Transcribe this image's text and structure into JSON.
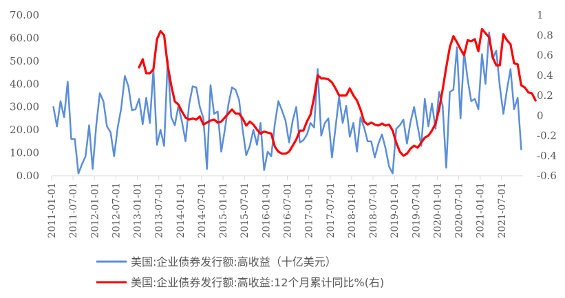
{
  "chart_data": {
    "type": "line",
    "colors": {
      "left_series": "#5B8ED8",
      "right_series": "#FF0000",
      "axis": "#D9D9D9",
      "text": "#595959"
    },
    "x_labels": [
      "2011-01-01",
      "2011-07-01",
      "2012-01-01",
      "2012-07-01",
      "2013-01-01",
      "2013-07-01",
      "2014-01-01",
      "2014-07-01",
      "2015-01-01",
      "2015-07-01",
      "2016-01-01",
      "2016-07-01",
      "2017-01-01",
      "2017-07-01",
      "2018-01-01",
      "2018-07-01",
      "2019-01-01",
      "2019-07-01",
      "2020-01-01",
      "2020-07-01",
      "2021-01-01",
      "2021-07-01"
    ],
    "start_month": "2011-01",
    "y_left": {
      "min": 0,
      "max": 70,
      "step": 10,
      "tick_labels": [
        "0.00",
        "10.00",
        "20.00",
        "30.00",
        "40.00",
        "50.00",
        "60.00",
        "70.00"
      ]
    },
    "y_right": {
      "min": -0.6,
      "max": 1.0,
      "step": 0.2,
      "tick_labels": [
        "-0.6",
        "-0.4",
        "-0.2",
        "0",
        "0.2",
        "0.4",
        "0.6",
        "0.8",
        "1"
      ]
    },
    "series": [
      {
        "name": "美国:企业债券发行额:高收益（十亿美元）",
        "axis": "left",
        "values": [
          30,
          21.5,
          32.5,
          25.5,
          41,
          16,
          16,
          1,
          5,
          8.5,
          22,
          3,
          22,
          36,
          32.5,
          21.5,
          19,
          8.5,
          21,
          29.5,
          43.5,
          39,
          28.5,
          29,
          33.5,
          22.5,
          34,
          23,
          46.5,
          13.5,
          20,
          13,
          50.5,
          25.5,
          22,
          30.5,
          23.5,
          15,
          31,
          39,
          38.5,
          30,
          25,
          3,
          39.5,
          27,
          28,
          10.5,
          20,
          31,
          38.5,
          37.5,
          33,
          20,
          9,
          13,
          20,
          13.5,
          23,
          2.5,
          10.5,
          8.5,
          22.5,
          32.5,
          28.5,
          24,
          14.5,
          24,
          30,
          14.5,
          15.5,
          18,
          23,
          21,
          46.5,
          17.5,
          23,
          25,
          8,
          21,
          34.5,
          23,
          30.5,
          17,
          23,
          10.5,
          25.5,
          21,
          15,
          15,
          8,
          14,
          18,
          12,
          4,
          1,
          20.5,
          22,
          24.5,
          14,
          23.5,
          30,
          21.5,
          13,
          33.5,
          21.5,
          31.5,
          20.5,
          36.5,
          30.5,
          3.5,
          36.5,
          37.5,
          56,
          25,
          54,
          42,
          32.5,
          33.5,
          29,
          53,
          40,
          62.5,
          51,
          54.5,
          39,
          27,
          37.5,
          46.5,
          29,
          34,
          11.5
        ]
      },
      {
        "name": "美国:企业债券发行额:高收益:12个月累计同比%(右)",
        "axis": "right",
        "values": [
          null,
          null,
          null,
          null,
          null,
          null,
          null,
          null,
          null,
          null,
          null,
          null,
          null,
          null,
          null,
          null,
          null,
          null,
          null,
          null,
          null,
          null,
          null,
          null,
          0.48,
          0.56,
          0.42,
          0.42,
          0.46,
          0.76,
          0.84,
          0.8,
          0.5,
          0.3,
          0.14,
          0.11,
          0.04,
          -0.02,
          -0.04,
          -0.03,
          -0.04,
          -0.01,
          -0.09,
          -0.07,
          -0.05,
          -0.04,
          -0.07,
          -0.06,
          -0.02,
          0.02,
          0.06,
          0.02,
          0.02,
          -0.03,
          -0.1,
          -0.06,
          -0.09,
          -0.14,
          -0.18,
          -0.16,
          -0.17,
          -0.18,
          -0.31,
          -0.36,
          -0.38,
          -0.38,
          -0.36,
          -0.3,
          -0.24,
          -0.15,
          -0.15,
          -0.06,
          0.01,
          0.18,
          0.4,
          0.37,
          0.37,
          0.36,
          0.33,
          0.27,
          0.2,
          0.2,
          0.2,
          0.27,
          0.2,
          0.15,
          0.06,
          -0.06,
          -0.09,
          -0.07,
          -0.09,
          -0.1,
          -0.08,
          -0.1,
          -0.09,
          -0.15,
          -0.27,
          -0.36,
          -0.4,
          -0.38,
          -0.33,
          -0.3,
          -0.32,
          -0.27,
          -0.22,
          -0.2,
          -0.15,
          -0.08,
          0.06,
          0.26,
          0.48,
          0.68,
          0.79,
          0.73,
          0.66,
          0.6,
          0.75,
          0.74,
          0.76,
          0.64,
          0.86,
          0.82,
          0.78,
          0.58,
          0.5,
          0.5,
          0.81,
          0.75,
          0.71,
          0.52,
          0.51,
          0.3,
          0.28,
          0.23,
          0.22,
          0.15
        ]
      }
    ],
    "legend": {
      "position": "bottom"
    },
    "grid": false
  }
}
